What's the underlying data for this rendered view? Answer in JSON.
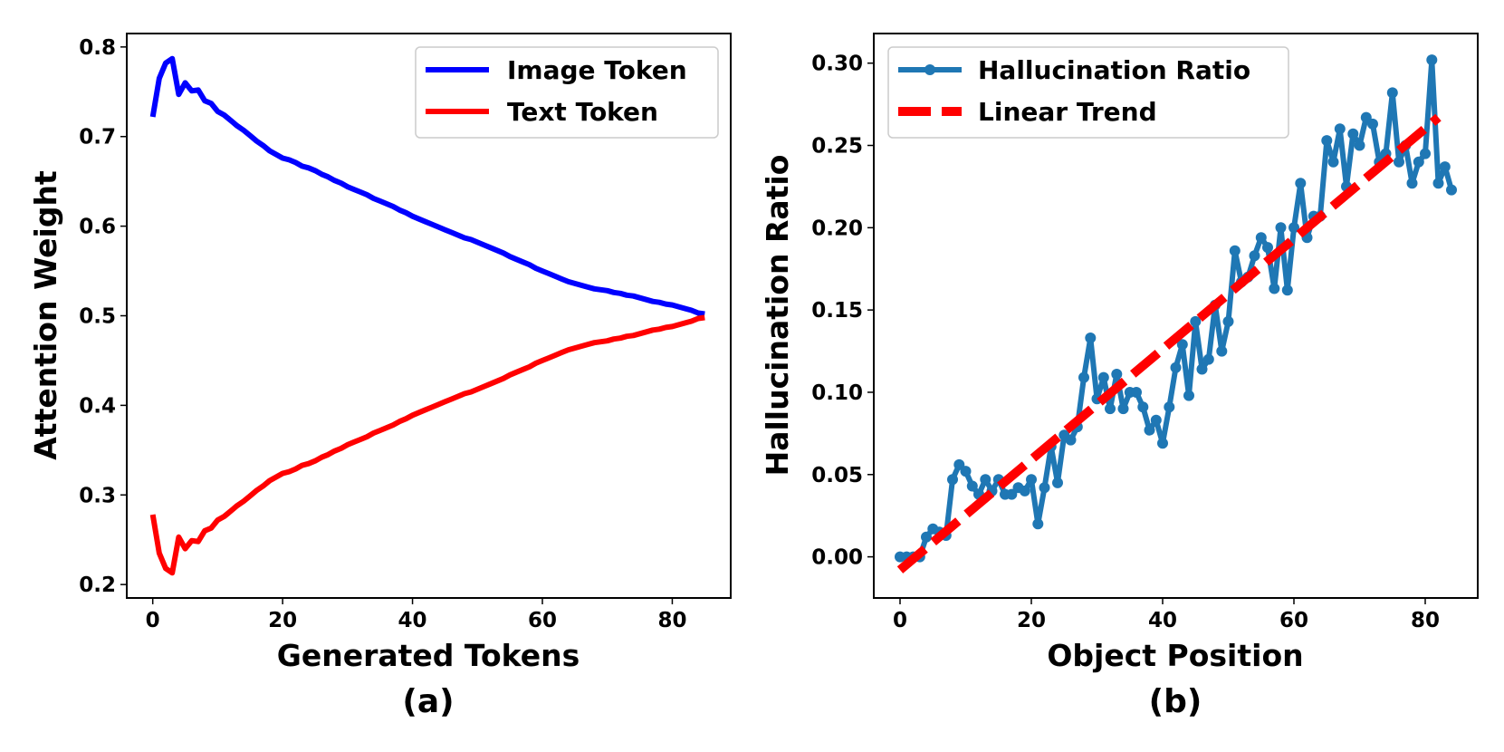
{
  "chart_data": [
    {
      "type": "line",
      "caption": "(a)",
      "xlabel": "Generated Tokens",
      "ylabel": "Attention Weight",
      "xlim": [
        -4,
        89
      ],
      "ylim": [
        0.185,
        0.815
      ],
      "xticks": [
        0,
        20,
        40,
        60,
        80
      ],
      "yticks": [
        0.2,
        0.3,
        0.4,
        0.5,
        0.6,
        0.7,
        0.8
      ],
      "ytick_decimals": 1,
      "grid": false,
      "legend": "upper right",
      "series": [
        {
          "name": "Image Token",
          "color": "#0000ff",
          "style": "solid",
          "x": [
            0,
            1,
            2,
            3,
            4,
            5,
            6,
            7,
            8,
            9,
            10,
            11,
            12,
            13,
            14,
            15,
            16,
            17,
            18,
            19,
            20,
            21,
            22,
            23,
            24,
            25,
            26,
            27,
            28,
            29,
            30,
            31,
            32,
            33,
            34,
            35,
            36,
            37,
            38,
            39,
            40,
            41,
            42,
            43,
            44,
            45,
            46,
            47,
            48,
            49,
            50,
            51,
            52,
            53,
            54,
            55,
            56,
            57,
            58,
            59,
            60,
            61,
            62,
            63,
            64,
            65,
            66,
            67,
            68,
            69,
            70,
            71,
            72,
            73,
            74,
            75,
            76,
            77,
            78,
            79,
            80,
            81,
            82,
            83,
            84,
            85
          ],
          "values": [
            0.722,
            0.765,
            0.782,
            0.787,
            0.747,
            0.76,
            0.751,
            0.752,
            0.74,
            0.737,
            0.728,
            0.724,
            0.718,
            0.712,
            0.707,
            0.701,
            0.695,
            0.69,
            0.684,
            0.68,
            0.676,
            0.674,
            0.671,
            0.667,
            0.665,
            0.662,
            0.658,
            0.655,
            0.651,
            0.648,
            0.644,
            0.641,
            0.638,
            0.635,
            0.631,
            0.628,
            0.625,
            0.622,
            0.618,
            0.615,
            0.611,
            0.608,
            0.605,
            0.602,
            0.599,
            0.596,
            0.593,
            0.59,
            0.587,
            0.585,
            0.582,
            0.579,
            0.576,
            0.573,
            0.57,
            0.566,
            0.563,
            0.56,
            0.557,
            0.553,
            0.55,
            0.547,
            0.544,
            0.541,
            0.538,
            0.536,
            0.534,
            0.532,
            0.53,
            0.529,
            0.528,
            0.526,
            0.525,
            0.523,
            0.522,
            0.52,
            0.518,
            0.516,
            0.515,
            0.513,
            0.512,
            0.51,
            0.508,
            0.506,
            0.503,
            0.502
          ]
        },
        {
          "name": "Text Token",
          "color": "#ff0000",
          "style": "solid",
          "x": [
            0,
            1,
            2,
            3,
            4,
            5,
            6,
            7,
            8,
            9,
            10,
            11,
            12,
            13,
            14,
            15,
            16,
            17,
            18,
            19,
            20,
            21,
            22,
            23,
            24,
            25,
            26,
            27,
            28,
            29,
            30,
            31,
            32,
            33,
            34,
            35,
            36,
            37,
            38,
            39,
            40,
            41,
            42,
            43,
            44,
            45,
            46,
            47,
            48,
            49,
            50,
            51,
            52,
            53,
            54,
            55,
            56,
            57,
            58,
            59,
            60,
            61,
            62,
            63,
            64,
            65,
            66,
            67,
            68,
            69,
            70,
            71,
            72,
            73,
            74,
            75,
            76,
            77,
            78,
            79,
            80,
            81,
            82,
            83,
            84,
            85
          ],
          "values": [
            0.278,
            0.235,
            0.218,
            0.213,
            0.253,
            0.24,
            0.249,
            0.248,
            0.26,
            0.263,
            0.272,
            0.276,
            0.282,
            0.288,
            0.293,
            0.299,
            0.305,
            0.31,
            0.316,
            0.32,
            0.324,
            0.326,
            0.329,
            0.333,
            0.335,
            0.338,
            0.342,
            0.345,
            0.349,
            0.352,
            0.356,
            0.359,
            0.362,
            0.365,
            0.369,
            0.372,
            0.375,
            0.378,
            0.382,
            0.385,
            0.389,
            0.392,
            0.395,
            0.398,
            0.401,
            0.404,
            0.407,
            0.41,
            0.413,
            0.415,
            0.418,
            0.421,
            0.424,
            0.427,
            0.43,
            0.434,
            0.437,
            0.44,
            0.443,
            0.447,
            0.45,
            0.453,
            0.456,
            0.459,
            0.462,
            0.464,
            0.466,
            0.468,
            0.47,
            0.471,
            0.472,
            0.474,
            0.475,
            0.477,
            0.478,
            0.48,
            0.482,
            0.484,
            0.485,
            0.487,
            0.488,
            0.49,
            0.492,
            0.494,
            0.497,
            0.498
          ]
        }
      ]
    },
    {
      "type": "line",
      "caption": "(b)",
      "xlabel": "Object Position",
      "ylabel": "Hallucination Ratio",
      "xlim": [
        -4,
        88
      ],
      "ylim": [
        -0.025,
        0.318
      ],
      "xticks": [
        0,
        20,
        40,
        60,
        80
      ],
      "yticks": [
        0.0,
        0.05,
        0.1,
        0.15,
        0.2,
        0.25,
        0.3
      ],
      "ytick_decimals": 2,
      "grid": false,
      "legend": "upper left",
      "series": [
        {
          "name": "Hallucination Ratio",
          "color": "#1f77b4",
          "style": "solid",
          "marker": "circle",
          "x": [
            0,
            1,
            2,
            3,
            4,
            5,
            6,
            7,
            8,
            9,
            10,
            11,
            12,
            13,
            14,
            15,
            16,
            17,
            18,
            19,
            20,
            21,
            22,
            23,
            24,
            25,
            26,
            27,
            28,
            29,
            30,
            31,
            32,
            33,
            34,
            35,
            36,
            37,
            38,
            39,
            40,
            41,
            42,
            43,
            44,
            45,
            46,
            47,
            48,
            49,
            50,
            51,
            52,
            53,
            54,
            55,
            56,
            57,
            58,
            59,
            60,
            61,
            62,
            63,
            64,
            65,
            66,
            67,
            68,
            69,
            70,
            71,
            72,
            73,
            74,
            75,
            76,
            77,
            78,
            79,
            80,
            81,
            82,
            83,
            84
          ],
          "values": [
            0.0,
            0.0,
            0.0,
            0.0,
            0.012,
            0.017,
            0.015,
            0.013,
            0.047,
            0.056,
            0.052,
            0.043,
            0.038,
            0.047,
            0.04,
            0.047,
            0.038,
            0.038,
            0.042,
            0.04,
            0.047,
            0.02,
            0.042,
            0.067,
            0.045,
            0.074,
            0.071,
            0.079,
            0.109,
            0.133,
            0.096,
            0.109,
            0.09,
            0.111,
            0.09,
            0.1,
            0.1,
            0.091,
            0.077,
            0.083,
            0.069,
            0.091,
            0.115,
            0.129,
            0.098,
            0.143,
            0.114,
            0.12,
            0.153,
            0.125,
            0.143,
            0.186,
            0.167,
            0.17,
            0.183,
            0.194,
            0.188,
            0.163,
            0.2,
            0.162,
            0.2,
            0.227,
            0.194,
            0.207,
            0.207,
            0.253,
            0.24,
            0.26,
            0.225,
            0.257,
            0.25,
            0.267,
            0.263,
            0.24,
            0.245,
            0.282,
            0.24,
            0.25,
            0.227,
            0.24,
            0.245,
            0.302,
            0.227,
            0.237,
            0.223
          ]
        },
        {
          "name": "Linear Trend",
          "color": "#ff0000",
          "style": "dashed",
          "x": [
            0,
            82
          ],
          "values": [
            -0.008,
            0.267
          ]
        }
      ]
    }
  ]
}
